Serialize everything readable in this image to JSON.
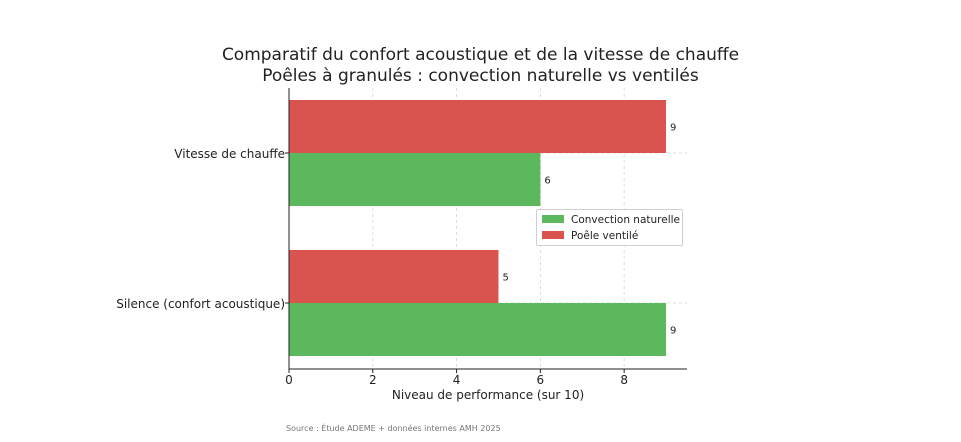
{
  "title_line1": "Comparatif du confort acoustique et de la vitesse de chauffe",
  "title_line2": "Poêles à granulés : convection naturelle vs ventilés",
  "source": "Source : Étude ADEME + données internes AMH 2025",
  "colors": {
    "convection": "#5cb85c",
    "ventile": "#d9534f"
  },
  "chart_data": {
    "type": "bar",
    "orientation": "horizontal",
    "categories": [
      "Vitesse de chauffe",
      "Silence (confort acoustique)"
    ],
    "series": [
      {
        "name": "Poêle ventilé",
        "values": [
          9,
          5
        ]
      },
      {
        "name": "Convection naturelle",
        "values": [
          6,
          9
        ]
      }
    ],
    "xlabel": "Niveau de performance (sur 10)",
    "ylabel": "",
    "xlim": [
      0,
      9.5
    ],
    "xticks": [
      0,
      2,
      4,
      6,
      8
    ],
    "grid": true,
    "legend": [
      "Convection naturelle",
      "Poêle ventilé"
    ],
    "legend_position": "center-right"
  }
}
